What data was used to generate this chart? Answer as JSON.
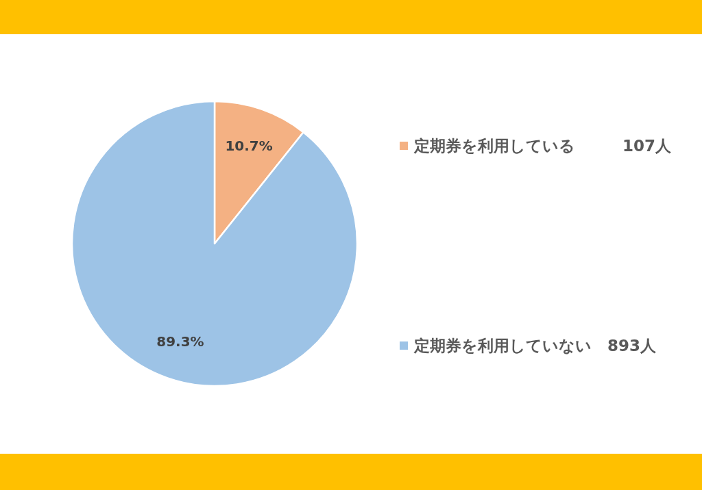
{
  "chart_data": {
    "type": "pie",
    "categories": [
      "定期券を利用している　　　107人",
      "定期券を利用していない　893人"
    ],
    "values": [
      10.7,
      89.3
    ],
    "value_labels": [
      "10.7%",
      "89.3%"
    ],
    "colors": [
      "#f4b183",
      "#9dc3e6"
    ],
    "legend": "right"
  }
}
